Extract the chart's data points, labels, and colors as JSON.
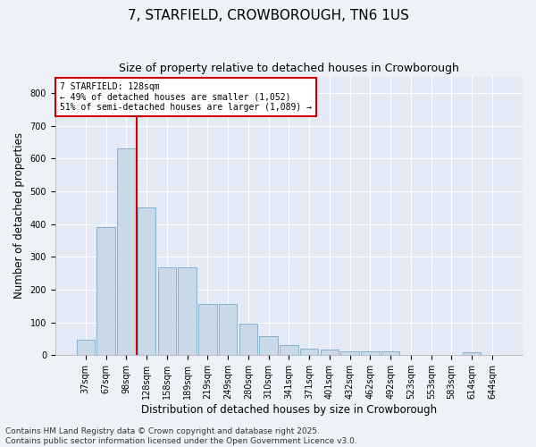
{
  "title": "7, STARFIELD, CROWBOROUGH, TN6 1US",
  "subtitle": "Size of property relative to detached houses in Crowborough",
  "xlabel": "Distribution of detached houses by size in Crowborough",
  "ylabel": "Number of detached properties",
  "categories": [
    "37sqm",
    "67sqm",
    "98sqm",
    "128sqm",
    "158sqm",
    "189sqm",
    "219sqm",
    "249sqm",
    "280sqm",
    "310sqm",
    "341sqm",
    "371sqm",
    "401sqm",
    "432sqm",
    "462sqm",
    "492sqm",
    "523sqm",
    "553sqm",
    "583sqm",
    "614sqm",
    "644sqm"
  ],
  "values": [
    47,
    390,
    630,
    450,
    268,
    268,
    155,
    155,
    97,
    57,
    30,
    20,
    18,
    12,
    12,
    12,
    0,
    0,
    0,
    8,
    0
  ],
  "bar_color": "#c9d9e8",
  "bar_edge_color": "#7aaac8",
  "vline_x": 2.5,
  "vline_color": "#cc0000",
  "annotation_text": "7 STARFIELD: 128sqm\n← 49% of detached houses are smaller (1,052)\n51% of semi-detached houses are larger (1,089) →",
  "annotation_box_color": "#cc0000",
  "ylim": [
    0,
    850
  ],
  "yticks": [
    0,
    100,
    200,
    300,
    400,
    500,
    600,
    700,
    800
  ],
  "footnote": "Contains HM Land Registry data © Crown copyright and database right 2025.\nContains public sector information licensed under the Open Government Licence v3.0.",
  "background_color": "#eef2f8",
  "axes_background_color": "#e4eaf5",
  "grid_color": "#ffffff",
  "title_fontsize": 11,
  "subtitle_fontsize": 9,
  "axis_label_fontsize": 8.5,
  "tick_fontsize": 7,
  "footnote_fontsize": 6.5
}
